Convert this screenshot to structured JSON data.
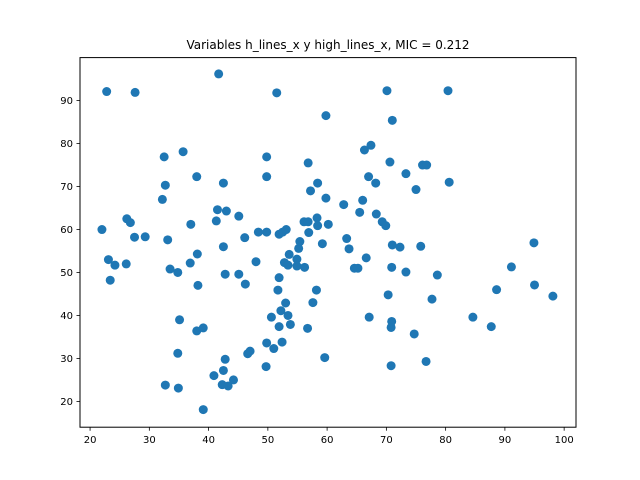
{
  "chart_data": {
    "type": "scatter",
    "title": "Variables h_lines_x y high_lines_x, MIC = 0.212",
    "xlabel": "",
    "ylabel": "",
    "xlim": [
      18.3,
      102
    ],
    "ylim": [
      14,
      100
    ],
    "xticks": [
      20,
      30,
      40,
      50,
      60,
      70,
      80,
      90,
      100
    ],
    "yticks": [
      20,
      30,
      40,
      50,
      60,
      70,
      80,
      90
    ],
    "grid": false,
    "marker_color": "#1f77b4",
    "points": [
      [
        22.8,
        92.1
      ],
      [
        27.6,
        91.9
      ],
      [
        41.7,
        96.2
      ],
      [
        51.5,
        91.8
      ],
      [
        70.1,
        92.3
      ],
      [
        80.4,
        92.3
      ],
      [
        59.8,
        86.5
      ],
      [
        71.0,
        85.4
      ],
      [
        66.3,
        78.5
      ],
      [
        67.4,
        79.6
      ],
      [
        32.5,
        76.9
      ],
      [
        35.7,
        78.1
      ],
      [
        49.8,
        76.9
      ],
      [
        56.8,
        75.5
      ],
      [
        70.6,
        75.7
      ],
      [
        76.1,
        75.0
      ],
      [
        76.8,
        75.0
      ],
      [
        32.7,
        70.3
      ],
      [
        38.0,
        72.3
      ],
      [
        42.5,
        70.8
      ],
      [
        49.8,
        72.3
      ],
      [
        58.4,
        70.8
      ],
      [
        57.2,
        69.0
      ],
      [
        67.0,
        72.3
      ],
      [
        68.2,
        70.8
      ],
      [
        73.3,
        73.0
      ],
      [
        75.0,
        69.3
      ],
      [
        80.6,
        71.0
      ],
      [
        32.2,
        67.0
      ],
      [
        59.8,
        67.3
      ],
      [
        62.8,
        65.8
      ],
      [
        65.5,
        64.0
      ],
      [
        66.0,
        66.8
      ],
      [
        68.3,
        63.6
      ],
      [
        69.3,
        61.8
      ],
      [
        69.9,
        60.9
      ],
      [
        41.5,
        64.6
      ],
      [
        43.0,
        64.3
      ],
      [
        45.1,
        63.1
      ],
      [
        41.3,
        62.0
      ],
      [
        37.0,
        61.2
      ],
      [
        58.3,
        62.7
      ],
      [
        56.1,
        61.8
      ],
      [
        56.8,
        61.8
      ],
      [
        58.4,
        60.9
      ],
      [
        60.2,
        61.2
      ],
      [
        56.9,
        59.3
      ],
      [
        51.9,
        58.9
      ],
      [
        52.5,
        59.4
      ],
      [
        53.1,
        60.0
      ],
      [
        48.4,
        59.4
      ],
      [
        49.8,
        59.4
      ],
      [
        26.2,
        62.5
      ],
      [
        26.8,
        61.6
      ],
      [
        22.0,
        60.0
      ],
      [
        27.5,
        58.2
      ],
      [
        29.3,
        58.3
      ],
      [
        33.1,
        57.6
      ],
      [
        46.1,
        58.1
      ],
      [
        42.5,
        56.0
      ],
      [
        38.1,
        54.3
      ],
      [
        36.9,
        52.2
      ],
      [
        23.1,
        53.0
      ],
      [
        24.2,
        51.7
      ],
      [
        26.1,
        52.0
      ],
      [
        33.5,
        50.8
      ],
      [
        34.8,
        50.0
      ],
      [
        42.8,
        49.6
      ],
      [
        45.1,
        49.6
      ],
      [
        48.0,
        52.5
      ],
      [
        52.8,
        52.3
      ],
      [
        53.4,
        51.7
      ],
      [
        53.6,
        54.2
      ],
      [
        54.9,
        53.1
      ],
      [
        55.2,
        55.6
      ],
      [
        55.4,
        57.2
      ],
      [
        54.9,
        51.5
      ],
      [
        56.2,
        51.2
      ],
      [
        51.9,
        48.8
      ],
      [
        57.6,
        43.0
      ],
      [
        58.2,
        45.9
      ],
      [
        59.2,
        56.7
      ],
      [
        63.3,
        57.9
      ],
      [
        63.7,
        55.5
      ],
      [
        64.6,
        51.0
      ],
      [
        65.2,
        51.0
      ],
      [
        66.6,
        53.4
      ],
      [
        71.0,
        56.4
      ],
      [
        72.3,
        55.9
      ],
      [
        70.9,
        51.2
      ],
      [
        73.3,
        50.1
      ],
      [
        75.8,
        56.1
      ],
      [
        78.6,
        49.4
      ],
      [
        23.4,
        48.2
      ],
      [
        38.2,
        47.0
      ],
      [
        46.2,
        47.3
      ],
      [
        51.7,
        45.9
      ],
      [
        53.0,
        42.9
      ],
      [
        50.6,
        39.6
      ],
      [
        52.2,
        41.1
      ],
      [
        53.4,
        40.0
      ],
      [
        51.9,
        37.4
      ],
      [
        53.8,
        37.9
      ],
      [
        56.7,
        37.0
      ],
      [
        35.1,
        39.0
      ],
      [
        38.0,
        36.4
      ],
      [
        39.1,
        37.1
      ],
      [
        46.6,
        31.1
      ],
      [
        47.0,
        31.7
      ],
      [
        42.8,
        29.8
      ],
      [
        51.0,
        32.3
      ],
      [
        49.8,
        33.6
      ],
      [
        52.4,
        33.8
      ],
      [
        49.7,
        28.1
      ],
      [
        59.6,
        30.2
      ],
      [
        34.8,
        31.2
      ],
      [
        70.3,
        44.8
      ],
      [
        67.1,
        39.6
      ],
      [
        70.9,
        38.6
      ],
      [
        70.8,
        37.2
      ],
      [
        74.7,
        35.7
      ],
      [
        77.7,
        43.8
      ],
      [
        76.7,
        29.3
      ],
      [
        70.8,
        28.3
      ],
      [
        84.6,
        39.6
      ],
      [
        87.7,
        37.4
      ],
      [
        88.6,
        46.0
      ],
      [
        91.1,
        51.3
      ],
      [
        94.9,
        56.9
      ],
      [
        95.0,
        47.1
      ],
      [
        98.1,
        44.5
      ],
      [
        40.9,
        26.0
      ],
      [
        42.5,
        27.2
      ],
      [
        42.3,
        23.9
      ],
      [
        43.3,
        23.6
      ],
      [
        44.2,
        25.0
      ],
      [
        32.7,
        23.8
      ],
      [
        34.9,
        23.1
      ],
      [
        39.1,
        18.1
      ]
    ]
  }
}
